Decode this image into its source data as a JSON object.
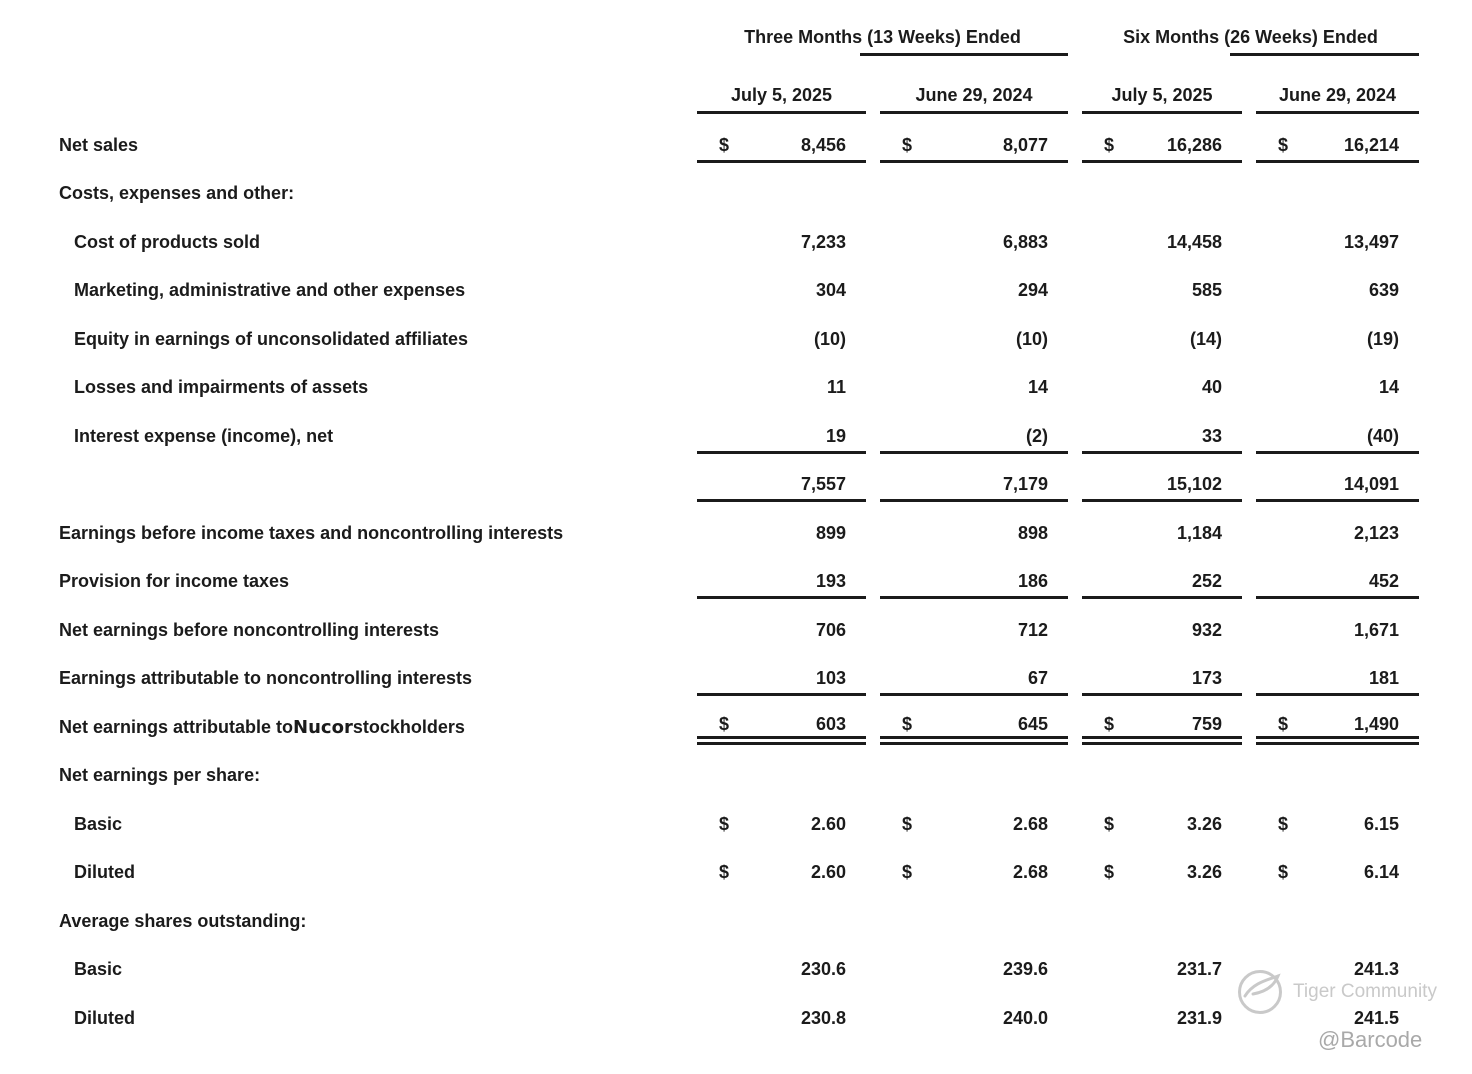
{
  "table": {
    "currency": "$",
    "group_headers": [
      "Three Months (13 Weeks) Ended",
      "Six Months (26 Weeks) Ended"
    ],
    "column_headers": [
      "July 5, 2025",
      "June 29, 2024",
      "July 5, 2025",
      "June 29, 2024"
    ],
    "rows": [
      {
        "label": "Net sales",
        "indent": 0,
        "dollar": true,
        "rule_below": "single",
        "values": [
          "8,456",
          "8,077",
          "16,286",
          "16,214"
        ]
      },
      {
        "label": "Costs, expenses and other:",
        "indent": 0,
        "values": [
          "",
          "",
          "",
          ""
        ]
      },
      {
        "label": "Cost of products sold",
        "indent": 1,
        "values": [
          "7,233",
          "6,883",
          "14,458",
          "13,497"
        ]
      },
      {
        "label": "Marketing, administrative and other expenses",
        "indent": 1,
        "values": [
          "304",
          "294",
          "585",
          "639"
        ]
      },
      {
        "label": "Equity in earnings of unconsolidated affiliates",
        "indent": 1,
        "values": [
          "(10)",
          "(10)",
          "(14)",
          "(19)"
        ]
      },
      {
        "label": "Losses and impairments of assets",
        "indent": 1,
        "values": [
          "11",
          "14",
          "40",
          "14"
        ]
      },
      {
        "label": "Interest expense (income), net",
        "indent": 1,
        "rule_below": "single",
        "values": [
          "19",
          "(2)",
          "33",
          "(40)"
        ]
      },
      {
        "label": "",
        "indent": 0,
        "rule_below": "single",
        "values": [
          "7,557",
          "7,179",
          "15,102",
          "14,091"
        ]
      },
      {
        "label": "Earnings before income taxes and noncontrolling interests",
        "indent": 0,
        "values": [
          "899",
          "898",
          "1,184",
          "2,123"
        ]
      },
      {
        "label": "Provision for income taxes",
        "indent": 0,
        "rule_below": "single",
        "values": [
          "193",
          "186",
          "252",
          "452"
        ]
      },
      {
        "label": "Net earnings before noncontrolling interests",
        "indent": 0,
        "values": [
          "706",
          "712",
          "932",
          "1,671"
        ]
      },
      {
        "label": "Earnings attributable to noncontrolling interests",
        "indent": 0,
        "rule_below": "single",
        "values": [
          "103",
          "67",
          "173",
          "181"
        ]
      },
      {
        "label_parts": {
          "prefix": "Net earnings attributable to ",
          "strong": "Nucor",
          "suffix": " stockholders"
        },
        "indent": 0,
        "dollar": true,
        "rule_below": "double",
        "values": [
          "603",
          "645",
          "759",
          "1,490"
        ]
      },
      {
        "label": "Net earnings per share:",
        "indent": 0,
        "values": [
          "",
          "",
          "",
          ""
        ]
      },
      {
        "label": "Basic",
        "indent": 1,
        "dollar": true,
        "values": [
          "2.60",
          "2.68",
          "3.26",
          "6.15"
        ]
      },
      {
        "label": "Diluted",
        "indent": 1,
        "dollar": true,
        "values": [
          "2.60",
          "2.68",
          "3.26",
          "6.14"
        ]
      },
      {
        "label": "Average shares outstanding:",
        "indent": 0,
        "values": [
          "",
          "",
          "",
          ""
        ]
      },
      {
        "label": "Basic",
        "indent": 1,
        "values": [
          "230.6",
          "239.6",
          "231.7",
          "241.3"
        ]
      },
      {
        "label": "Diluted",
        "indent": 1,
        "values": [
          "230.8",
          "240.0",
          "231.9",
          "241.5"
        ]
      }
    ]
  },
  "watermark": {
    "community": "Tiger Community",
    "handle": "@Barcode"
  }
}
